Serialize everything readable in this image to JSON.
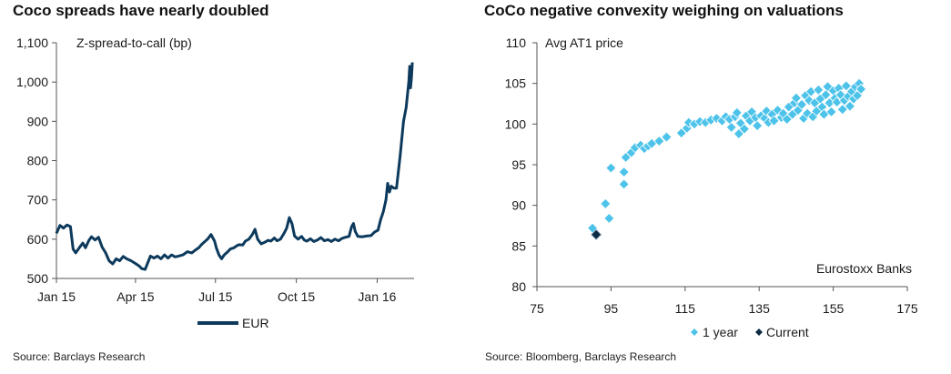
{
  "chart_data": [
    {
      "type": "line",
      "title": "Coco spreads have nearly doubled",
      "ylabel": "Z-spread-to-call (bp)",
      "xlabel": "",
      "ylim": [
        500,
        1100
      ],
      "yticks": [
        "1,100",
        "1,000",
        "900",
        "800",
        "700",
        "600",
        "500"
      ],
      "ytick_values": [
        1100,
        1000,
        900,
        800,
        700,
        600,
        500
      ],
      "xtick_labels": [
        "Jan 15",
        "Apr 15",
        "Jul 15",
        "Oct 15",
        "Jan 16"
      ],
      "xtick_dates": [
        "2015-01-01",
        "2015-04-01",
        "2015-07-01",
        "2015-10-01",
        "2016-01-01"
      ],
      "x_range": [
        "2015-01-01",
        "2016-02-12"
      ],
      "series": [
        {
          "name": "EUR",
          "color": "#0d3a5c",
          "points": [
            [
              "2015-01-01",
              615
            ],
            [
              "2015-01-05",
              635
            ],
            [
              "2015-01-09",
              628
            ],
            [
              "2015-01-13",
              636
            ],
            [
              "2015-01-17",
              632
            ],
            [
              "2015-01-20",
              575
            ],
            [
              "2015-01-23",
              565
            ],
            [
              "2015-01-27",
              578
            ],
            [
              "2015-01-31",
              590
            ],
            [
              "2015-02-03",
              578
            ],
            [
              "2015-02-07",
              597
            ],
            [
              "2015-02-10",
              606
            ],
            [
              "2015-02-14",
              598
            ],
            [
              "2015-02-18",
              605
            ],
            [
              "2015-02-22",
              580
            ],
            [
              "2015-02-26",
              565
            ],
            [
              "2015-03-02",
              545
            ],
            [
              "2015-03-06",
              537
            ],
            [
              "2015-03-10",
              550
            ],
            [
              "2015-03-14",
              545
            ],
            [
              "2015-03-18",
              556
            ],
            [
              "2015-03-22",
              550
            ],
            [
              "2015-03-27",
              545
            ],
            [
              "2015-04-01",
              538
            ],
            [
              "2015-04-05",
              532
            ],
            [
              "2015-04-08",
              525
            ],
            [
              "2015-04-12",
              523
            ],
            [
              "2015-04-15",
              540
            ],
            [
              "2015-04-18",
              557
            ],
            [
              "2015-04-22",
              552
            ],
            [
              "2015-04-26",
              557
            ],
            [
              "2015-04-30",
              550
            ],
            [
              "2015-05-04",
              560
            ],
            [
              "2015-05-08",
              552
            ],
            [
              "2015-05-12",
              560
            ],
            [
              "2015-05-16",
              555
            ],
            [
              "2015-05-20",
              557
            ],
            [
              "2015-05-25",
              560
            ],
            [
              "2015-05-30",
              568
            ],
            [
              "2015-06-04",
              565
            ],
            [
              "2015-06-08",
              572
            ],
            [
              "2015-06-12",
              578
            ],
            [
              "2015-06-15",
              586
            ],
            [
              "2015-06-18",
              592
            ],
            [
              "2015-06-22",
              600
            ],
            [
              "2015-06-26",
              612
            ],
            [
              "2015-06-30",
              595
            ],
            [
              "2015-07-02",
              578
            ],
            [
              "2015-07-05",
              560
            ],
            [
              "2015-07-08",
              550
            ],
            [
              "2015-07-11",
              560
            ],
            [
              "2015-07-15",
              568
            ],
            [
              "2015-07-18",
              575
            ],
            [
              "2015-07-22",
              578
            ],
            [
              "2015-07-25",
              583
            ],
            [
              "2015-07-28",
              586
            ],
            [
              "2015-08-01",
              585
            ],
            [
              "2015-08-04",
              595
            ],
            [
              "2015-08-08",
              600
            ],
            [
              "2015-08-12",
              612
            ],
            [
              "2015-08-15",
              625
            ],
            [
              "2015-08-18",
              600
            ],
            [
              "2015-08-22",
              588
            ],
            [
              "2015-08-26",
              592
            ],
            [
              "2015-08-30",
              597
            ],
            [
              "2015-09-02",
              595
            ],
            [
              "2015-09-06",
              603
            ],
            [
              "2015-09-09",
              596
            ],
            [
              "2015-09-13",
              600
            ],
            [
              "2015-09-17",
              615
            ],
            [
              "2015-09-20",
              628
            ],
            [
              "2015-09-23",
              655
            ],
            [
              "2015-09-26",
              640
            ],
            [
              "2015-09-29",
              608
            ],
            [
              "2015-10-03",
              600
            ],
            [
              "2015-10-07",
              607
            ],
            [
              "2015-10-10",
              598
            ],
            [
              "2015-10-13",
              595
            ],
            [
              "2015-10-17",
              601
            ],
            [
              "2015-10-21",
              594
            ],
            [
              "2015-10-25",
              598
            ],
            [
              "2015-10-29",
              604
            ],
            [
              "2015-11-02",
              596
            ],
            [
              "2015-11-06",
              599
            ],
            [
              "2015-11-10",
              594
            ],
            [
              "2015-11-14",
              600
            ],
            [
              "2015-11-18",
              596
            ],
            [
              "2015-11-22",
              602
            ],
            [
              "2015-11-26",
              605
            ],
            [
              "2015-11-30",
              607
            ],
            [
              "2015-12-03",
              632
            ],
            [
              "2015-12-05",
              640
            ],
            [
              "2015-12-07",
              620
            ],
            [
              "2015-12-10",
              607
            ],
            [
              "2015-12-15",
              606
            ],
            [
              "2015-12-20",
              608
            ],
            [
              "2015-12-25",
              609
            ],
            [
              "2015-12-29",
              618
            ],
            [
              "2016-01-02",
              623
            ],
            [
              "2016-01-05",
              650
            ],
            [
              "2016-01-08",
              670
            ],
            [
              "2016-01-11",
              700
            ],
            [
              "2016-01-13",
              742
            ],
            [
              "2016-01-15",
              720
            ],
            [
              "2016-01-17",
              735
            ],
            [
              "2016-01-20",
              730
            ],
            [
              "2016-01-23",
              730
            ],
            [
              "2016-01-27",
              810
            ],
            [
              "2016-01-31",
              900
            ],
            [
              "2016-02-03",
              935
            ],
            [
              "2016-02-06",
              1000
            ],
            [
              "2016-02-07",
              1040
            ],
            [
              "2016-02-08",
              985
            ],
            [
              "2016-02-09",
              1010
            ],
            [
              "2016-02-10",
              1050
            ]
          ]
        }
      ],
      "legend": {
        "position": "bottom-center",
        "labels": [
          "EUR"
        ]
      }
    },
    {
      "type": "scatter",
      "title": "CoCo negative convexity weighing on valuations",
      "ylabel": "Avg AT1 price",
      "xlabel": "",
      "annotation": "Eurostoxx Banks",
      "xlim": [
        75,
        175
      ],
      "ylim": [
        80,
        110
      ],
      "xticks": [
        75,
        95,
        115,
        135,
        155,
        175
      ],
      "yticks": [
        110,
        105,
        100,
        95,
        90,
        85,
        80
      ],
      "series": [
        {
          "name": "1 year",
          "color": "#4ec3ea",
          "points": [
            [
              90,
              87.2
            ],
            [
              93.5,
              90.2
            ],
            [
              94.5,
              88.4
            ],
            [
              95,
              94.6
            ],
            [
              98.5,
              92.6
            ],
            [
              98.5,
              94.1
            ],
            [
              99,
              95.9
            ],
            [
              100.5,
              96.5
            ],
            [
              101.5,
              97.1
            ],
            [
              103,
              97.4
            ],
            [
              104,
              97.0
            ],
            [
              105,
              97.3
            ],
            [
              106,
              97.6
            ],
            [
              108,
              97.9
            ],
            [
              110,
              98.4
            ],
            [
              114,
              98.9
            ],
            [
              115.5,
              99.5
            ],
            [
              116,
              100.2
            ],
            [
              117.5,
              100.0
            ],
            [
              119,
              100.3
            ],
            [
              120.5,
              100.2
            ],
            [
              122,
              100.5
            ],
            [
              123.5,
              100.7
            ],
            [
              125,
              100.4
            ],
            [
              126,
              100.9
            ],
            [
              127,
              100.6
            ],
            [
              127.5,
              99.6
            ],
            [
              128.5,
              100.9
            ],
            [
              129,
              101.4
            ],
            [
              129.5,
              98.8
            ],
            [
              130,
              100.1
            ],
            [
              131,
              99.4
            ],
            [
              131.5,
              101.0
            ],
            [
              132.5,
              100.4
            ],
            [
              133,
              101.5
            ],
            [
              134,
              100.8
            ],
            [
              134.5,
              99.8
            ],
            [
              135.5,
              101.0
            ],
            [
              136.5,
              100.7
            ],
            [
              137,
              101.6
            ],
            [
              137.5,
              100.2
            ],
            [
              138.5,
              101.2
            ],
            [
              139,
              100.4
            ],
            [
              140,
              101.7
            ],
            [
              141,
              100.8
            ],
            [
              141.5,
              101.3
            ],
            [
              142.5,
              100.6
            ],
            [
              143,
              102.1
            ],
            [
              144,
              101.2
            ],
            [
              144.5,
              102.6
            ],
            [
              145,
              103.2
            ],
            [
              145.5,
              101.7
            ],
            [
              146.5,
              102.4
            ],
            [
              147,
              100.7
            ],
            [
              147.5,
              103.5
            ],
            [
              148,
              101.3
            ],
            [
              148.5,
              102.9
            ],
            [
              149,
              104.0
            ],
            [
              149.5,
              100.9
            ],
            [
              150,
              102.6
            ],
            [
              150.5,
              101.6
            ],
            [
              151,
              104.2
            ],
            [
              151.5,
              103.1
            ],
            [
              152,
              102.1
            ],
            [
              152.5,
              101.2
            ],
            [
              153,
              103.6
            ],
            [
              153.5,
              104.6
            ],
            [
              154,
              102.6
            ],
            [
              154.5,
              101.5
            ],
            [
              155,
              104.1
            ],
            [
              155.5,
              103.2
            ],
            [
              156,
              102.7
            ],
            [
              156.5,
              104.4
            ],
            [
              157,
              103.6
            ],
            [
              157.5,
              101.8
            ],
            [
              158,
              102.9
            ],
            [
              158.5,
              104.7
            ],
            [
              159,
              103.4
            ],
            [
              159.5,
              102.2
            ],
            [
              160,
              104.0
            ],
            [
              160.5,
              103.1
            ],
            [
              161,
              104.6
            ],
            [
              161.5,
              103.5
            ],
            [
              162,
              105.0
            ],
            [
              162.5,
              104.3
            ]
          ]
        },
        {
          "name": "Current",
          "color": "#0d2b45",
          "points": [
            [
              91,
              86.4
            ]
          ]
        }
      ],
      "legend": {
        "position": "bottom-center",
        "labels": [
          "1 year",
          "Current"
        ]
      }
    }
  ],
  "sources": {
    "left": "Source: Barclays Research",
    "right": "Source: Bloomberg, Barclays Research"
  }
}
